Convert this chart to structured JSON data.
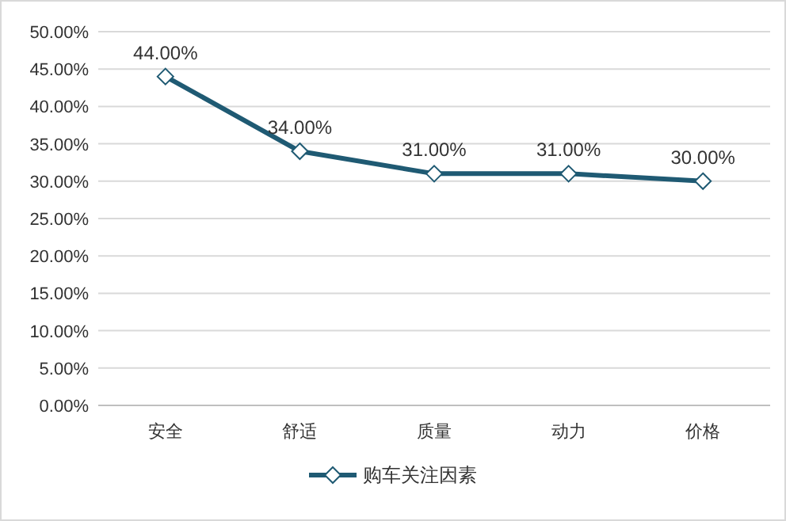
{
  "chart_data": {
    "type": "line",
    "categories": [
      "安全",
      "舒适",
      "质量",
      "动力",
      "价格"
    ],
    "series": [
      {
        "name": "购车关注因素",
        "color": "#1f5a73",
        "values": [
          44,
          34,
          31,
          31,
          30
        ],
        "value_labels": [
          "44.00%",
          "34.00%",
          "31.00%",
          "31.00%",
          "30.00%"
        ]
      }
    ],
    "ylim": [
      0,
      50
    ],
    "yticks": [
      {
        "value": 0,
        "label": "0.00%"
      },
      {
        "value": 5,
        "label": "5.00%"
      },
      {
        "value": 10,
        "label": "10.00%"
      },
      {
        "value": 15,
        "label": "15.00%"
      },
      {
        "value": 20,
        "label": "20.00%"
      },
      {
        "value": 25,
        "label": "25.00%"
      },
      {
        "value": 30,
        "label": "30.00%"
      },
      {
        "value": 35,
        "label": "35.00%"
      },
      {
        "value": 40,
        "label": "40.00%"
      },
      {
        "value": 45,
        "label": "45.00%"
      },
      {
        "value": 50,
        "label": "50.00%"
      }
    ],
    "grid": "y",
    "legend": "bottom",
    "marker": "diamond",
    "line_style": "solid"
  }
}
